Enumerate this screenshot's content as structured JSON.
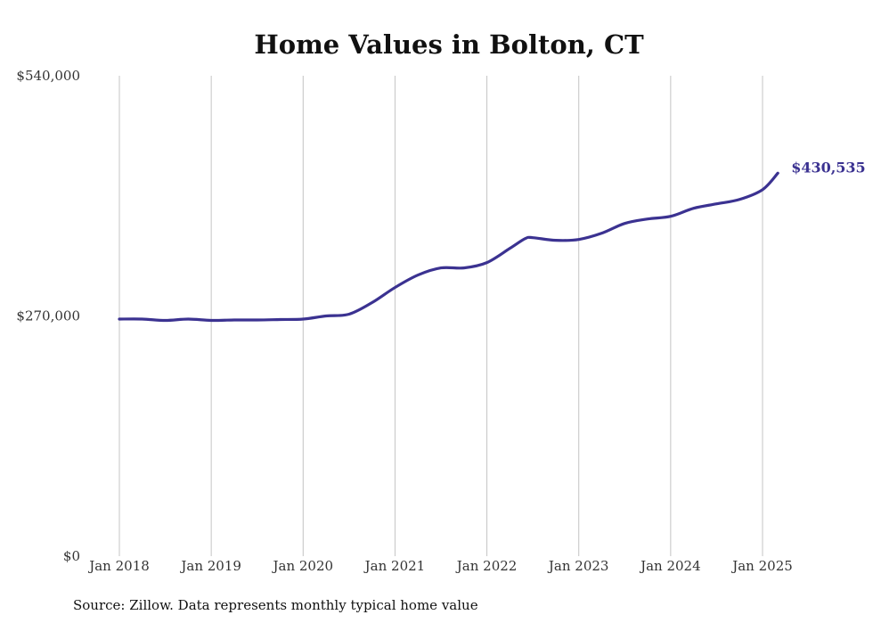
{
  "chart_data": {
    "type": "line",
    "title": "Home Values in Bolton, CT",
    "source": "Source: Zillow. Data represents monthly typical home value",
    "ylim": [
      0,
      540000
    ],
    "yticks": [
      {
        "value": 0,
        "label": "$0"
      },
      {
        "value": 270000,
        "label": "$270,000"
      },
      {
        "value": 540000,
        "label": "$540,000"
      }
    ],
    "xticks": [
      {
        "value": "2018-01",
        "label": "Jan 2018"
      },
      {
        "value": "2019-01",
        "label": "Jan 2019"
      },
      {
        "value": "2020-01",
        "label": "Jan 2020"
      },
      {
        "value": "2021-01",
        "label": "Jan 2021"
      },
      {
        "value": "2022-01",
        "label": "Jan 2022"
      },
      {
        "value": "2023-01",
        "label": "Jan 2023"
      },
      {
        "value": "2024-01",
        "label": "Jan 2024"
      },
      {
        "value": "2025-01",
        "label": "Jan 2025"
      }
    ],
    "grid": {
      "vertical": true,
      "horizontal": false
    },
    "end_label": "$430,535",
    "series": [
      {
        "color": "#3b3291",
        "points": [
          {
            "x": "2018-01",
            "y": 266500
          },
          {
            "x": "2018-04",
            "y": 266500
          },
          {
            "x": "2018-07",
            "y": 265000
          },
          {
            "x": "2018-10",
            "y": 266500
          },
          {
            "x": "2019-01",
            "y": 265000
          },
          {
            "x": "2019-04",
            "y": 265500
          },
          {
            "x": "2019-07",
            "y": 265500
          },
          {
            "x": "2019-10",
            "y": 266000
          },
          {
            "x": "2020-01",
            "y": 266500
          },
          {
            "x": "2020-04",
            "y": 270000
          },
          {
            "x": "2020-07",
            "y": 272000
          },
          {
            "x": "2020-10",
            "y": 285000
          },
          {
            "x": "2021-01",
            "y": 302000
          },
          {
            "x": "2021-04",
            "y": 316000
          },
          {
            "x": "2021-07",
            "y": 324000
          },
          {
            "x": "2021-10",
            "y": 324000
          },
          {
            "x": "2022-01",
            "y": 330000
          },
          {
            "x": "2022-04",
            "y": 346000
          },
          {
            "x": "2022-06",
            "y": 357000
          },
          {
            "x": "2022-07",
            "y": 358000
          },
          {
            "x": "2022-10",
            "y": 355000
          },
          {
            "x": "2023-01",
            "y": 356000
          },
          {
            "x": "2023-04",
            "y": 363000
          },
          {
            "x": "2023-07",
            "y": 374000
          },
          {
            "x": "2023-10",
            "y": 379000
          },
          {
            "x": "2024-01",
            "y": 382000
          },
          {
            "x": "2024-04",
            "y": 391000
          },
          {
            "x": "2024-07",
            "y": 396000
          },
          {
            "x": "2024-10",
            "y": 401000
          },
          {
            "x": "2025-01",
            "y": 412000
          },
          {
            "x": "2025-03",
            "y": 430535
          }
        ]
      }
    ]
  }
}
